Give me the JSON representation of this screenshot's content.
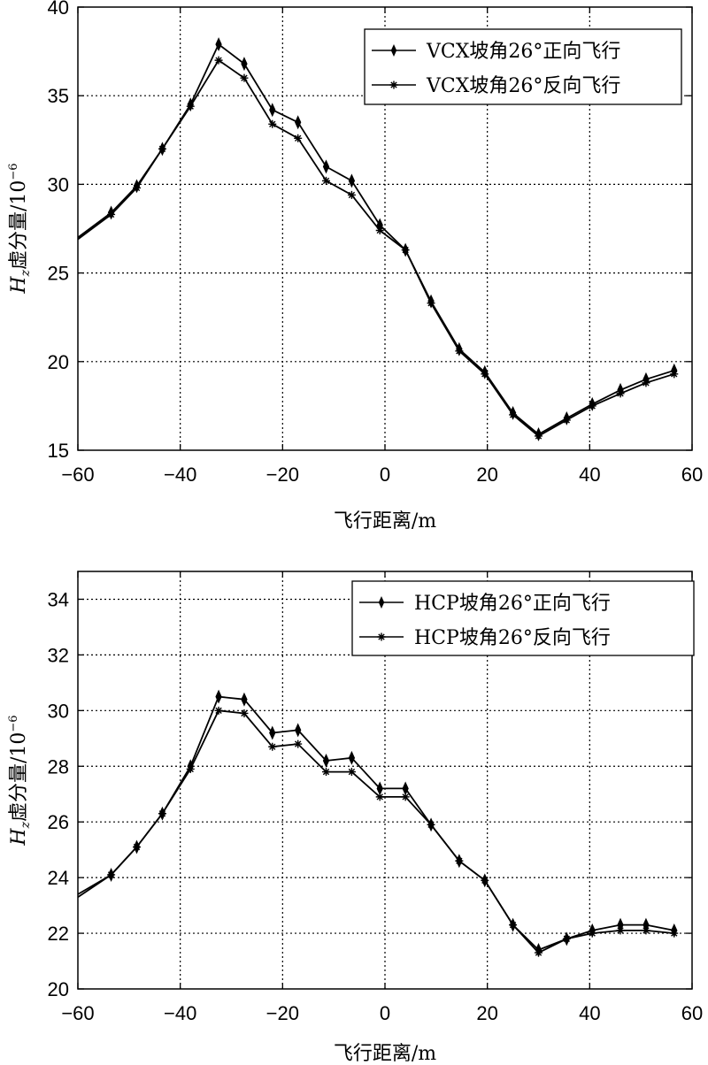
{
  "chart_data": [
    {
      "type": "line",
      "title": "",
      "xlabel": "飞行距离/m",
      "ylabel": {
        "var": "H",
        "sub": "z",
        "text": "虚分量/10",
        "sup": "−6"
      },
      "xlim": [
        -60,
        60
      ],
      "ylim": [
        15,
        40
      ],
      "xticks": [
        -60,
        -40,
        -20,
        0,
        20,
        40,
        60
      ],
      "xtick_labels": [
        "−60",
        "−40",
        "−20",
        "0",
        "20",
        "40",
        "60"
      ],
      "yticks": [
        15,
        20,
        25,
        30,
        35,
        40
      ],
      "ytick_labels": [
        "15",
        "20",
        "25",
        "30",
        "35",
        "40"
      ],
      "grid": true,
      "legend_position": "top-right",
      "series": [
        {
          "name": "VCX坡角26°正向飞行",
          "marker": "diamond",
          "x": [
            -60,
            -53.5,
            -48.5,
            -43.5,
            -38,
            -32.5,
            -27.5,
            -22,
            -17,
            -11.5,
            -6.5,
            -1,
            4,
            9,
            14.5,
            19.5,
            25,
            30,
            35.5,
            40.5,
            46,
            51,
            56.5
          ],
          "y": [
            27.0,
            28.4,
            29.9,
            32.0,
            34.5,
            37.9,
            36.8,
            34.2,
            33.5,
            31.0,
            30.2,
            27.7,
            26.3,
            23.4,
            20.7,
            19.4,
            17.1,
            15.9,
            16.8,
            17.6,
            18.4,
            19.0,
            19.5
          ]
        },
        {
          "name": "VCX坡角26°反向飞行",
          "marker": "star",
          "x": [
            -60,
            -53.5,
            -48.5,
            -43.5,
            -38,
            -32.5,
            -27.5,
            -22,
            -17,
            -11.5,
            -6.5,
            -1,
            4,
            9,
            14.5,
            19.5,
            25,
            30,
            35.5,
            40.5,
            46,
            51,
            56.5
          ],
          "y": [
            26.9,
            28.3,
            29.8,
            32.0,
            34.4,
            37.0,
            36.0,
            33.4,
            32.6,
            30.2,
            29.4,
            27.4,
            26.3,
            23.3,
            20.6,
            19.3,
            17.0,
            15.8,
            16.7,
            17.5,
            18.2,
            18.8,
            19.3
          ]
        }
      ]
    },
    {
      "type": "line",
      "title": "",
      "xlabel": "飞行距离/m",
      "ylabel": {
        "var": "H",
        "sub": "z",
        "text": "虚分量/10",
        "sup": "−6"
      },
      "xlim": [
        -60,
        60
      ],
      "ylim": [
        20,
        35
      ],
      "xticks": [
        -60,
        -40,
        -20,
        0,
        20,
        40,
        60
      ],
      "xtick_labels": [
        "−60",
        "−40",
        "−20",
        "0",
        "20",
        "40",
        "60"
      ],
      "yticks": [
        20,
        22,
        24,
        26,
        28,
        30,
        32,
        34
      ],
      "ytick_labels": [
        "20",
        "22",
        "24",
        "26",
        "28",
        "30",
        "32",
        "34"
      ],
      "grid": true,
      "legend_position": "top-right",
      "series": [
        {
          "name": "HCP坡角26°正向飞行",
          "marker": "diamond",
          "x": [
            -60,
            -53.5,
            -48.5,
            -43.5,
            -38,
            -32.5,
            -27.5,
            -22,
            -17,
            -11.5,
            -6.5,
            -1,
            4,
            9,
            14.5,
            19.5,
            25,
            30,
            35.5,
            40.5,
            46,
            51,
            56.5
          ],
          "y": [
            23.4,
            24.1,
            25.1,
            26.3,
            28.0,
            30.5,
            30.4,
            29.2,
            29.3,
            28.2,
            28.3,
            27.2,
            27.2,
            25.9,
            24.6,
            23.9,
            22.3,
            21.4,
            21.8,
            22.1,
            22.3,
            22.3,
            22.1
          ]
        },
        {
          "name": "HCP坡角26°反向飞行",
          "marker": "star",
          "x": [
            -60,
            -53.5,
            -48.5,
            -43.5,
            -38,
            -32.5,
            -27.5,
            -22,
            -17,
            -11.5,
            -6.5,
            -1,
            4,
            9,
            14.5,
            19.5,
            25,
            30,
            35.5,
            40.5,
            46,
            51,
            56.5
          ],
          "y": [
            23.3,
            24.1,
            25.1,
            26.3,
            27.9,
            30.0,
            29.9,
            28.7,
            28.8,
            27.8,
            27.8,
            26.9,
            26.9,
            25.9,
            24.6,
            23.9,
            22.3,
            21.3,
            21.8,
            22.0,
            22.1,
            22.1,
            22.0
          ]
        }
      ]
    }
  ]
}
